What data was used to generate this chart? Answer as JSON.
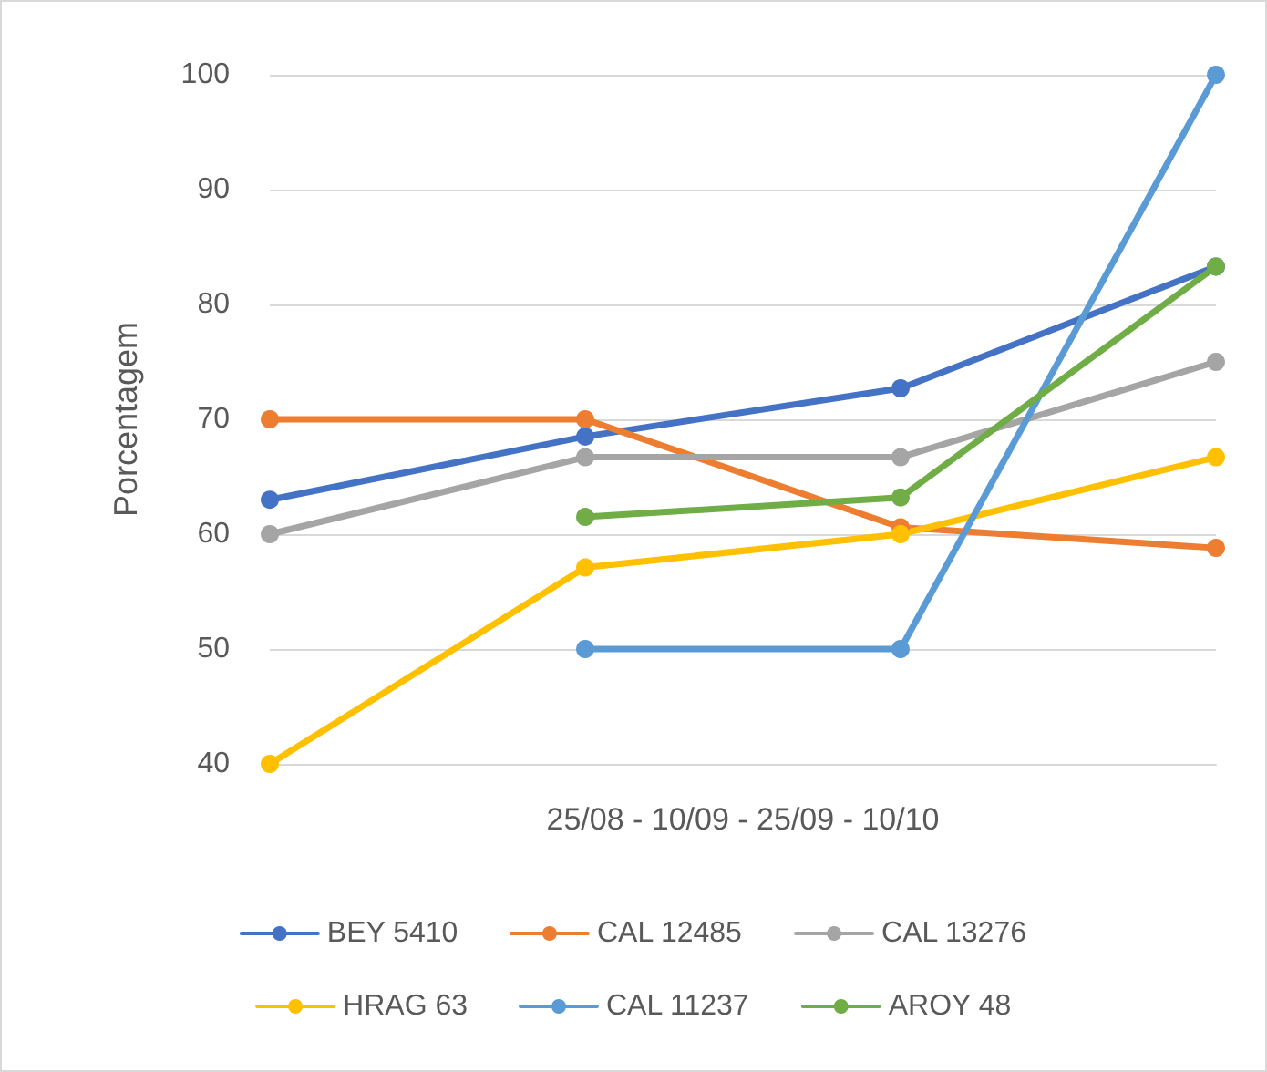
{
  "chart_data": {
    "type": "line",
    "ylabel": "Porcentagem",
    "xlabel": "25/08 - 10/09 - 25/09 - 10/10",
    "categories": [
      null,
      null,
      null,
      null
    ],
    "ylim": [
      40,
      100
    ],
    "yticks": [
      40,
      50,
      60,
      70,
      80,
      90,
      100
    ],
    "grid": "y",
    "legend": "bottom",
    "marker": "circle",
    "line_style": "solid",
    "series": [
      {
        "name": "BEY 5410",
        "color": "#4472c4",
        "values": [
          63,
          68.5,
          72.7,
          83.3
        ]
      },
      {
        "name": "CAL 12485",
        "color": "#ed7d31",
        "values": [
          70,
          70,
          60.6,
          58.8
        ]
      },
      {
        "name": "CAL 13276",
        "color": "#a5a5a5",
        "values": [
          60,
          66.7,
          66.7,
          75
        ]
      },
      {
        "name": "HRAG 63",
        "color": "#ffc000",
        "values": [
          40,
          57.1,
          60,
          66.7
        ]
      },
      {
        "name": "CAL 11237",
        "color": "#5b9bd5",
        "values": [
          null,
          50,
          50,
          100
        ]
      },
      {
        "name": "AROY 48",
        "color": "#70ad47",
        "values": [
          null,
          61.5,
          63.2,
          83.3
        ]
      }
    ]
  }
}
